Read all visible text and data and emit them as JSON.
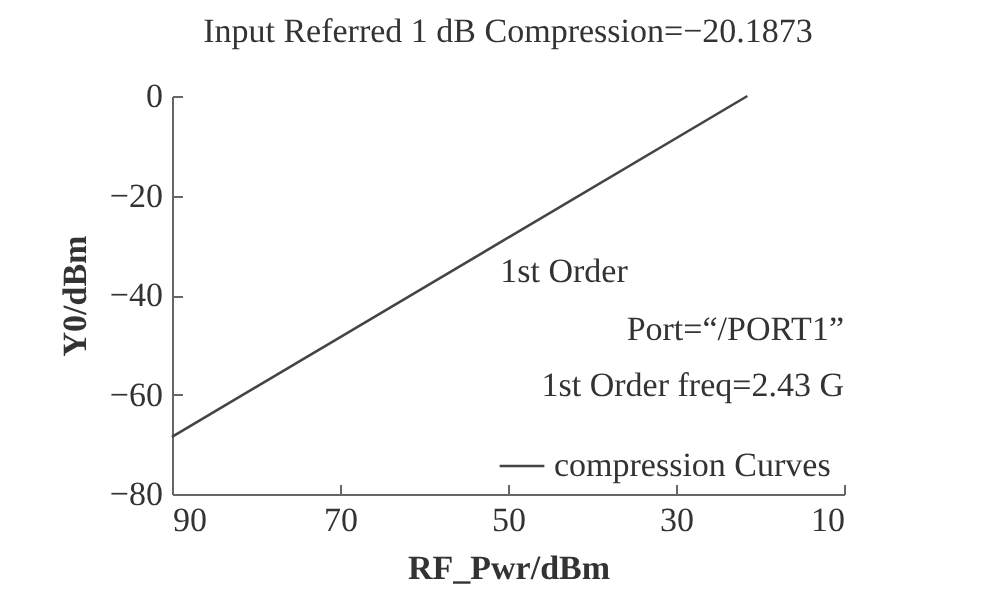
{
  "chart_data": {
    "type": "line",
    "title": "Input Referred 1 dB Compression=−20.1873",
    "xlabel": "RF_Pwr/dBm",
    "ylabel": "Y0/dBm",
    "annotations": [
      "1st Order",
      "Port=“/PORT1”",
      "1st Order freq=2.43 G"
    ],
    "series": [
      {
        "name": "compression Curves",
        "color": "#444444",
        "x": [
          90,
          21.5
        ],
        "values": [
          -68.5,
          0
        ]
      }
    ],
    "xlim": [
      90,
      10
    ],
    "xticks": [
      90,
      70,
      50,
      30,
      10
    ],
    "ylim": [
      -80,
      0
    ],
    "yticks": [
      -80,
      -60,
      -40,
      -20,
      0
    ],
    "grid": false,
    "legend": "bottom right",
    "marker": "none",
    "line_style": "solid"
  }
}
